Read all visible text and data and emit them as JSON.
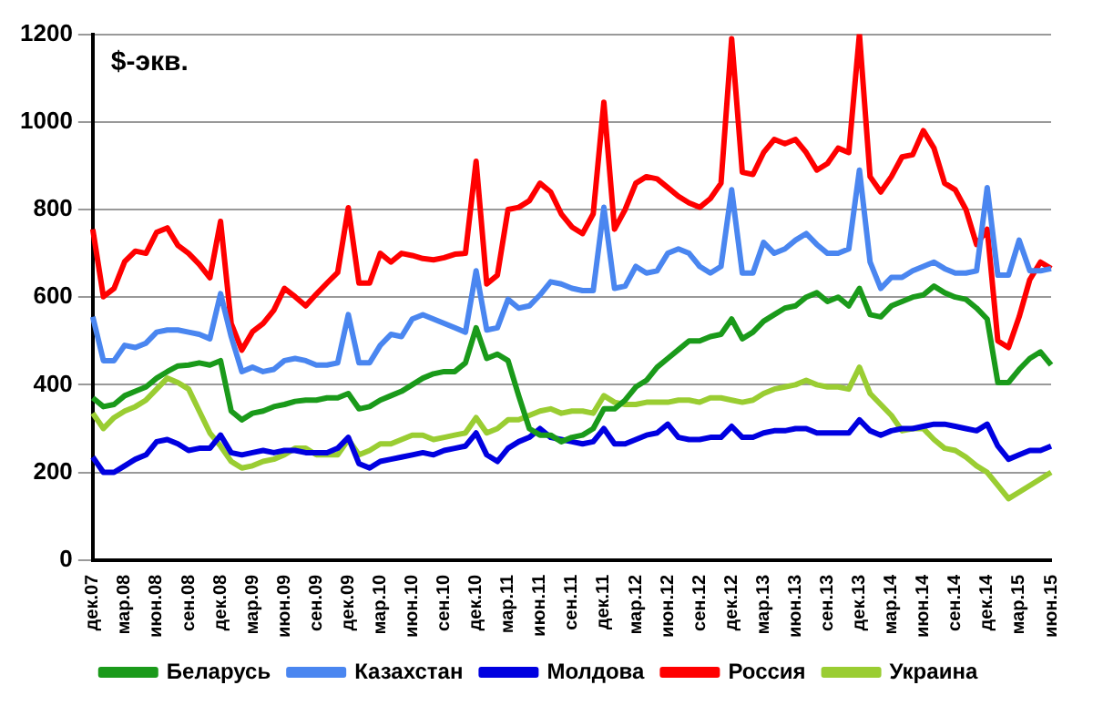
{
  "chart_data": {
    "type": "line",
    "ylabel": "$-экв.",
    "categories": [
      "дек.07",
      null,
      null,
      "мар.08",
      null,
      null,
      "июн.08",
      null,
      null,
      "сен.08",
      null,
      null,
      "дек.08",
      null,
      null,
      "мар.09",
      null,
      null,
      "июн.09",
      null,
      null,
      "сен.09",
      null,
      null,
      "дек.09",
      null,
      null,
      "мар.10",
      null,
      null,
      "июн.10",
      null,
      null,
      "сен.10",
      null,
      null,
      "дек.10",
      null,
      null,
      "мар.11",
      null,
      null,
      "июн.11",
      null,
      null,
      "сен.11",
      null,
      null,
      "дек.11",
      null,
      null,
      "мар.12",
      null,
      null,
      "июн.12",
      null,
      null,
      "сен.12",
      null,
      null,
      "дек.12",
      null,
      null,
      "мар.13",
      null,
      null,
      "июн.13",
      null,
      null,
      "сен.13",
      null,
      null,
      "дек.13",
      null,
      null,
      "мар.14",
      null,
      null,
      "июн.14",
      null,
      null,
      "сен.14",
      null,
      null,
      "дек.14",
      null,
      null,
      "мар.15",
      null,
      null,
      "июн.15"
    ],
    "series": [
      {
        "name": "Беларусь",
        "color": "#1a9a1a",
        "values": [
          370,
          350,
          355,
          375,
          385,
          395,
          415,
          430,
          443,
          445,
          450,
          445,
          455,
          340,
          320,
          335,
          340,
          350,
          355,
          362,
          365,
          365,
          370,
          370,
          380,
          345,
          350,
          365,
          375,
          385,
          400,
          415,
          425,
          430,
          430,
          450,
          530,
          460,
          470,
          455,
          375,
          300,
          285,
          285,
          270,
          280,
          285,
          300,
          345,
          345,
          365,
          395,
          410,
          440,
          460,
          480,
          500,
          500,
          510,
          515,
          550,
          505,
          520,
          545,
          560,
          575,
          580,
          600,
          610,
          590,
          600,
          580,
          620,
          560,
          555,
          580,
          590,
          600,
          605,
          625,
          610,
          600,
          595,
          575,
          550,
          405,
          405,
          435,
          460,
          475,
          445
        ]
      },
      {
        "name": "Казахстан",
        "color": "#4a86f0",
        "values": [
          555,
          455,
          455,
          490,
          485,
          495,
          520,
          525,
          525,
          520,
          515,
          505,
          608,
          510,
          430,
          440,
          430,
          435,
          455,
          460,
          455,
          445,
          445,
          450,
          560,
          450,
          450,
          490,
          515,
          510,
          550,
          560,
          550,
          540,
          530,
          520,
          660,
          525,
          530,
          595,
          575,
          580,
          605,
          635,
          630,
          620,
          615,
          615,
          805,
          620,
          625,
          670,
          655,
          660,
          700,
          710,
          700,
          670,
          655,
          670,
          845,
          655,
          655,
          725,
          700,
          710,
          730,
          745,
          720,
          700,
          700,
          710,
          890,
          680,
          620,
          645,
          645,
          660,
          670,
          680,
          665,
          655,
          655,
          660,
          850,
          650,
          650,
          730,
          660,
          660,
          665
        ]
      },
      {
        "name": "Молдова",
        "color": "#0000e0",
        "values": [
          235,
          200,
          200,
          215,
          230,
          240,
          270,
          275,
          265,
          250,
          255,
          255,
          285,
          245,
          240,
          245,
          250,
          245,
          250,
          250,
          245,
          245,
          245,
          255,
          280,
          220,
          210,
          225,
          230,
          235,
          240,
          245,
          240,
          250,
          255,
          260,
          290,
          240,
          225,
          255,
          270,
          280,
          300,
          280,
          275,
          270,
          265,
          270,
          300,
          265,
          265,
          275,
          285,
          290,
          310,
          280,
          275,
          275,
          280,
          280,
          305,
          280,
          280,
          290,
          295,
          295,
          300,
          300,
          290,
          290,
          290,
          290,
          320,
          295,
          285,
          295,
          300,
          300,
          305,
          310,
          310,
          305,
          300,
          295,
          310,
          260,
          230,
          240,
          250,
          250,
          260
        ]
      },
      {
        "name": "Россия",
        "color": "#ff0000",
        "values": [
          755,
          601,
          620,
          681,
          705,
          700,
          748,
          758,
          718,
          700,
          675,
          644,
          773,
          540,
          479,
          521,
          540,
          570,
          620,
          601,
          580,
          607,
          632,
          656,
          804,
          632,
          632,
          700,
          680,
          700,
          695,
          688,
          685,
          690,
          698,
          700,
          910,
          630,
          650,
          800,
          805,
          820,
          860,
          840,
          790,
          760,
          745,
          790,
          1045,
          755,
          800,
          860,
          875,
          870,
          850,
          830,
          815,
          805,
          825,
          860,
          1190,
          885,
          880,
          930,
          960,
          950,
          960,
          930,
          890,
          905,
          940,
          930,
          1200,
          875,
          840,
          875,
          920,
          925,
          980,
          940,
          860,
          845,
          800,
          720,
          755,
          500,
          485,
          555,
          640,
          680,
          665
        ]
      },
      {
        "name": "Украина",
        "color": "#9acd32",
        "values": [
          335,
          300,
          325,
          340,
          350,
          365,
          390,
          415,
          405,
          390,
          340,
          290,
          260,
          225,
          210,
          215,
          225,
          230,
          240,
          255,
          255,
          240,
          240,
          240,
          275,
          240,
          250,
          265,
          265,
          275,
          285,
          285,
          275,
          280,
          285,
          290,
          325,
          290,
          300,
          320,
          320,
          330,
          340,
          345,
          335,
          340,
          340,
          335,
          375,
          360,
          355,
          355,
          360,
          360,
          360,
          365,
          365,
          360,
          370,
          370,
          365,
          360,
          365,
          380,
          390,
          395,
          400,
          410,
          400,
          395,
          395,
          390,
          440,
          380,
          355,
          330,
          295,
          300,
          300,
          275,
          255,
          250,
          235,
          215,
          200,
          170,
          140,
          155,
          170,
          185,
          200
        ]
      }
    ],
    "ylim": [
      0,
      1200
    ],
    "yticks": [
      0,
      200,
      400,
      600,
      800,
      1000,
      1200
    ],
    "grid": "y",
    "legend": "bottom",
    "marker": "none",
    "line_style": "solid"
  }
}
